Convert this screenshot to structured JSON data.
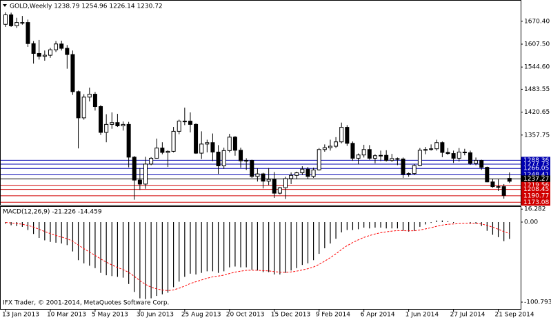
{
  "chart_data": [
    {
      "type": "candlestick",
      "title": "GOLD,Weekly  1238.79 1254.96 1226.14 1230.72",
      "categories": [
        "13 Jan 2013",
        null,
        null,
        null,
        null,
        null,
        null,
        null,
        "10 Mar 2013",
        null,
        null,
        null,
        null,
        null,
        null,
        null,
        "5 May 2013",
        null,
        null,
        null,
        null,
        null,
        null,
        null,
        "30 Jun 2013",
        null,
        null,
        null,
        null,
        null,
        null,
        null,
        "25 Aug 2013",
        null,
        null,
        null,
        null,
        null,
        null,
        null,
        "20 Oct 2013",
        null,
        null,
        null,
        null,
        null,
        null,
        null,
        "15 Dec 2013",
        null,
        null,
        null,
        null,
        null,
        null,
        null,
        "9 Feb 2014",
        null,
        null,
        null,
        null,
        null,
        null,
        null,
        "6 Apr 2014",
        null,
        null,
        null,
        null,
        null,
        null,
        null,
        "1 Jun 2014",
        null,
        null,
        null,
        null,
        null,
        null,
        null,
        "27 Jul 2014",
        null,
        null,
        null,
        null,
        null,
        null,
        null,
        "21 Sep 2014",
        null,
        null
      ],
      "open": [
        1662,
        1688,
        1658,
        1667,
        1667,
        1609,
        1582,
        1574,
        1577,
        1592,
        1608,
        1596,
        1579,
        1477,
        1405,
        1462,
        1470,
        1436,
        1365,
        1387,
        1392,
        1383,
        1387,
        1297,
        1234,
        1223,
        1278,
        1294,
        1322,
        1310,
        1313,
        1368,
        1396,
        1396,
        1387,
        1308,
        1333,
        1337,
        1311,
        1273,
        1315,
        1352,
        1316,
        1287,
        1288,
        1244,
        1251,
        1231,
        1236,
        1198,
        1213,
        1238,
        1247,
        1254,
        1264,
        1244,
        1262,
        1318,
        1323,
        1327,
        1339,
        1379,
        1335,
        1294,
        1303,
        1318,
        1294,
        1301,
        1302,
        1288,
        1293,
        1292,
        1250,
        1252,
        1274,
        1316,
        1318,
        1320,
        1337,
        1310,
        1307,
        1294,
        1311,
        1309,
        1280,
        1288,
        1269,
        1229,
        1216,
        1216,
        1238.79
      ],
      "high": [
        1695,
        1694,
        1680,
        1685,
        1675,
        1616,
        1619,
        1590,
        1597,
        1616,
        1617,
        1605,
        1590,
        1480,
        1470,
        1488,
        1476,
        1440,
        1415,
        1420,
        1416,
        1395,
        1394,
        1300,
        1267,
        1298,
        1297,
        1348,
        1338,
        1316,
        1380,
        1400,
        1433,
        1420,
        1390,
        1368,
        1345,
        1362,
        1330,
        1323,
        1361,
        1355,
        1323,
        1294,
        1290,
        1266,
        1254,
        1267,
        1256,
        1215,
        1243,
        1255,
        1257,
        1272,
        1270,
        1268,
        1322,
        1332,
        1345,
        1352,
        1392,
        1385,
        1340,
        1307,
        1331,
        1330,
        1305,
        1315,
        1316,
        1306,
        1296,
        1296,
        1255,
        1278,
        1322,
        1325,
        1332,
        1345,
        1340,
        1322,
        1315,
        1322,
        1320,
        1315,
        1296,
        1290,
        1271,
        1238,
        1236,
        1223,
        1254.96
      ],
      "low": [
        1655,
        1655,
        1652,
        1661,
        1600,
        1554,
        1565,
        1562,
        1570,
        1586,
        1590,
        1540,
        1468,
        1321,
        1400,
        1450,
        1425,
        1358,
        1338,
        1375,
        1380,
        1370,
        1269,
        1180,
        1207,
        1210,
        1275,
        1293,
        1305,
        1270,
        1310,
        1360,
        1385,
        1365,
        1306,
        1292,
        1310,
        1286,
        1251,
        1265,
        1310,
        1301,
        1268,
        1262,
        1240,
        1230,
        1211,
        1220,
        1185,
        1195,
        1182,
        1223,
        1236,
        1248,
        1238,
        1240,
        1260,
        1312,
        1315,
        1322,
        1335,
        1328,
        1287,
        1277,
        1296,
        1290,
        1280,
        1286,
        1285,
        1284,
        1275,
        1240,
        1243,
        1248,
        1272,
        1305,
        1315,
        1315,
        1297,
        1303,
        1281,
        1285,
        1302,
        1276,
        1275,
        1262,
        1228,
        1213,
        1204,
        1183,
        1226.14
      ],
      "close": [
        1688,
        1658,
        1667,
        1667,
        1609,
        1582,
        1574,
        1577,
        1592,
        1608,
        1596,
        1579,
        1477,
        1405,
        1462,
        1470,
        1436,
        1365,
        1387,
        1392,
        1383,
        1387,
        1297,
        1234,
        1223,
        1278,
        1294,
        1322,
        1310,
        1313,
        1368,
        1396,
        1396,
        1387,
        1308,
        1333,
        1337,
        1311,
        1273,
        1315,
        1352,
        1316,
        1287,
        1288,
        1244,
        1251,
        1231,
        1236,
        1198,
        1213,
        1238,
        1247,
        1254,
        1264,
        1244,
        1262,
        1318,
        1323,
        1327,
        1339,
        1379,
        1335,
        1294,
        1303,
        1318,
        1294,
        1301,
        1302,
        1288,
        1293,
        1292,
        1250,
        1252,
        1274,
        1316,
        1318,
        1320,
        1337,
        1310,
        1307,
        1294,
        1311,
        1309,
        1280,
        1288,
        1269,
        1229,
        1216,
        1216,
        1192,
        1230.72
      ],
      "up_color": "#ffffff",
      "down_color": "#000000",
      "ylim": [
        1166,
        1725
      ],
      "yticks": [
        {
          "value": 1670.4,
          "label": "1670.40"
        },
        {
          "value": 1607.5,
          "label": "1607.50"
        },
        {
          "value": 1544.6,
          "label": "1544.60"
        },
        1483.55,
        1420.65,
        1357.75
      ],
      "levels": [
        {
          "value": 1288.36,
          "color": "#0000b0"
        },
        {
          "value": 1277.73,
          "color": "#0000b0"
        },
        {
          "value": 1266.05,
          "color": "#0000b0"
        },
        {
          "value": 1248.41,
          "color": "#0000b0"
        },
        {
          "value": 1237.27,
          "color": "#000000"
        },
        {
          "value": 1219.56,
          "color": "#d00000"
        },
        {
          "value": 1208.45,
          "color": "#d00000"
        },
        {
          "value": 1190.77,
          "color": "#d00000"
        },
        {
          "value": 1173.08,
          "color": "#d00000"
        }
      ]
    },
    {
      "type": "macd",
      "title": "MACD(12,26,9) -21.226 -14.459",
      "values": [
        -2,
        -4,
        -5,
        -6,
        -10,
        -15,
        -20,
        -23,
        -25,
        -26,
        -27,
        -29,
        -37,
        -48,
        -52,
        -55,
        -58,
        -64,
        -67,
        -68,
        -69,
        -70,
        -78,
        -88,
        -96,
        -97,
        -96,
        -93,
        -91,
        -89,
        -82,
        -75,
        -69,
        -65,
        -66,
        -64,
        -62,
        -62,
        -64,
        -62,
        -57,
        -56,
        -57,
        -57,
        -60,
        -61,
        -63,
        -63,
        -66,
        -66,
        -64,
        -61,
        -58,
        -54,
        -52,
        -48,
        -40,
        -33,
        -27,
        -21,
        -13,
        -10,
        -10,
        -9,
        -7,
        -8,
        -7,
        -7,
        -8,
        -8,
        -8,
        -11,
        -12,
        -11,
        -6,
        -3,
        -1,
        2,
        2,
        1,
        -1,
        0,
        0,
        -2,
        -2,
        -5,
        -11,
        -16,
        -19,
        -24,
        -21.226
      ],
      "signal": [
        -0.4,
        -1.1,
        -1.9,
        -2.7,
        -4.2,
        -6.3,
        -9.1,
        -11.9,
        -14.5,
        -16.8,
        -18.9,
        -20.9,
        -24.1,
        -28.9,
        -33.5,
        -37.8,
        -41.9,
        -46.4,
        -50.5,
        -54,
        -57.2,
        -59.8,
        -63.4,
        -68.3,
        -73.8,
        -78.5,
        -82,
        -84.2,
        -85.6,
        -86.3,
        -85.4,
        -83.3,
        -80.5,
        -77.4,
        -75.1,
        -72.9,
        -70.7,
        -69,
        -68,
        -66.8,
        -64.8,
        -63,
        -61.8,
        -60.8,
        -60.6,
        -60.7,
        -61.2,
        -61.5,
        -62.4,
        -63.1,
        -63.3,
        -62.8,
        -61.8,
        -60.3,
        -58.7,
        -56.6,
        -53.3,
        -49.2,
        -44.8,
        -40,
        -34.6,
        -29.7,
        -25.8,
        -22.4,
        -19.3,
        -17,
        -15,
        -13.4,
        -12.3,
        -11.4,
        -10.7,
        -10.8,
        -11,
        -11,
        -10,
        -8.6,
        -7.1,
        -5.3,
        -3.8,
        -2.8,
        -2.4,
        -1.9,
        -1.5,
        -1.6,
        -1.7,
        -2.4,
        -4.1,
        -6.5,
        -9,
        -12,
        -14.459
      ],
      "color": "#000000",
      "signal_color": "#ff0000",
      "ylim": [
        -110.3,
        19.1
      ],
      "yticks": [
        16.282,
        {
          "value": 0,
          "label": "0.00"
        },
        -100.793
      ]
    }
  ],
  "footer": "IFX Trader, © 2001-2014, MetaQuotes Software Corp."
}
